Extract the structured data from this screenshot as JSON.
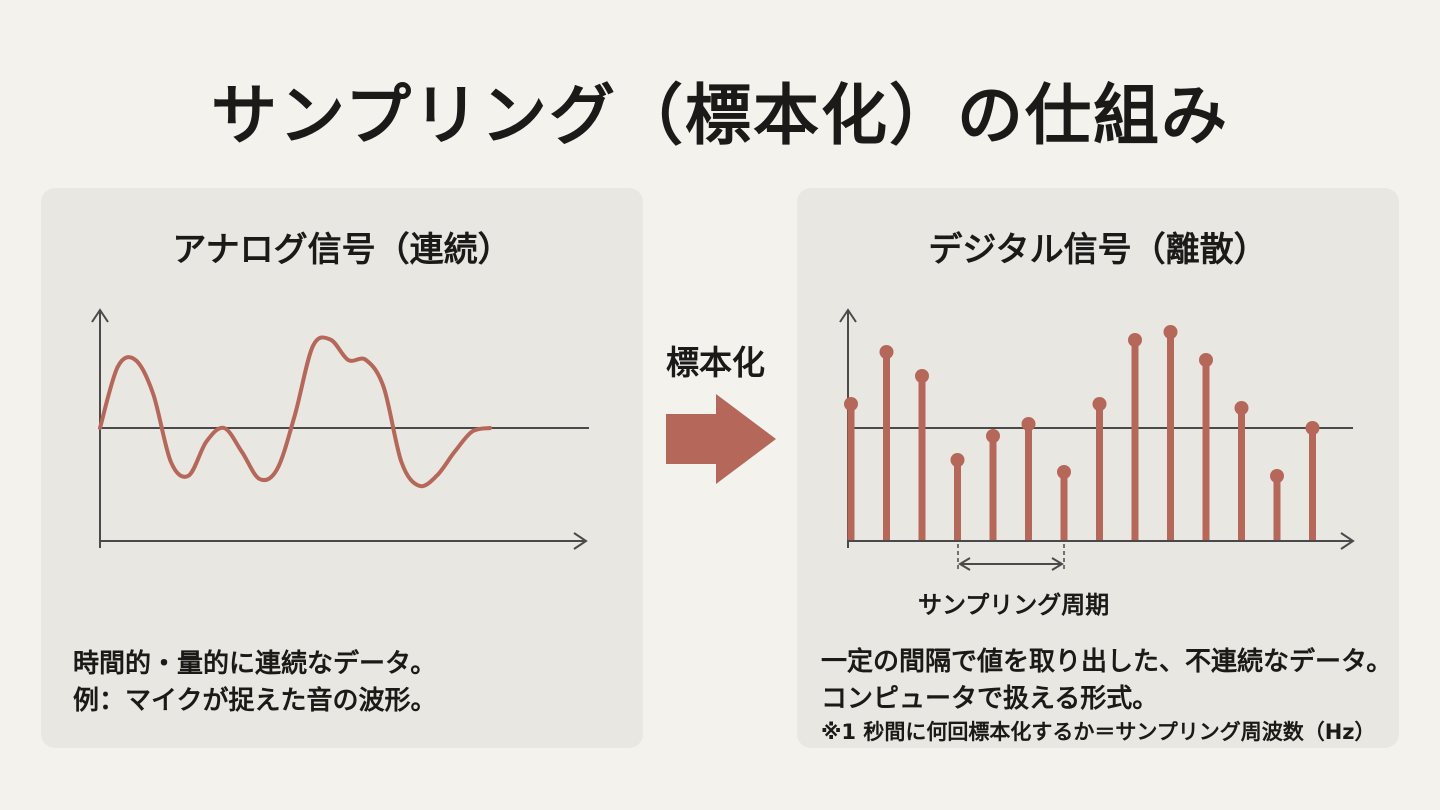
{
  "title": "サンプリング（標本化）の仕組み",
  "colors": {
    "signal": "#b5675a",
    "axis": "#4a4a4a",
    "panel_bg": "#e9e7e1",
    "page_bg": "#f4f2ec"
  },
  "analog": {
    "heading": "アナログ信号（連続）",
    "desc_line1": "時間的・量的に連続なデータ。",
    "desc_line2": "例：マイクが捉えた音の波形。"
  },
  "arrow": {
    "label": "標本化"
  },
  "digital": {
    "heading": "デジタル信号（離散）",
    "period_label": "サンプリング周期",
    "desc_line1": "一定の間隔で値を取り出した、不連続なデータ。",
    "desc_line2": "コンピュータで扱える形式。",
    "note": "※1 秒間に何回標本化するか＝サンプリング周波数（Hz）"
  },
  "chart_data": [
    {
      "type": "line",
      "name": "analog",
      "x": [
        0,
        0.5,
        1,
        1.5,
        2,
        2.5,
        3,
        3.5,
        4,
        4.5,
        5,
        5.5,
        6,
        6.5,
        7,
        7.5,
        8,
        8.5,
        9,
        9.5,
        10,
        10.5,
        11,
        11.5,
        12,
        12.5,
        13
      ],
      "y": [
        0,
        0.9,
        1.0,
        0.5,
        -0.5,
        -0.7,
        -0.2,
        0.0,
        -0.35,
        -0.75,
        -0.6,
        0.2,
        1.2,
        1.3,
        1.0,
        1.0,
        0.6,
        -0.5,
        -0.85,
        -0.7,
        -0.35,
        -0.05,
        0,
        0,
        0,
        0,
        0
      ],
      "xlim": [
        0,
        13
      ],
      "ylim": [
        -1.7,
        1.7
      ],
      "grid": false
    },
    {
      "type": "bar",
      "name": "digital",
      "x": [
        0,
        1,
        2,
        3,
        4,
        5,
        6,
        7,
        8,
        9,
        10,
        11,
        12,
        13
      ],
      "values": [
        0.6,
        1.9,
        1.3,
        -0.8,
        -0.2,
        0.1,
        -1.1,
        0.6,
        2.2,
        2.4,
        1.7,
        0.5,
        -1.2,
        0.0
      ],
      "xlim": [
        -0.2,
        14.2
      ],
      "ylim": [
        -2.7,
        2.85
      ],
      "grid": false
    }
  ]
}
